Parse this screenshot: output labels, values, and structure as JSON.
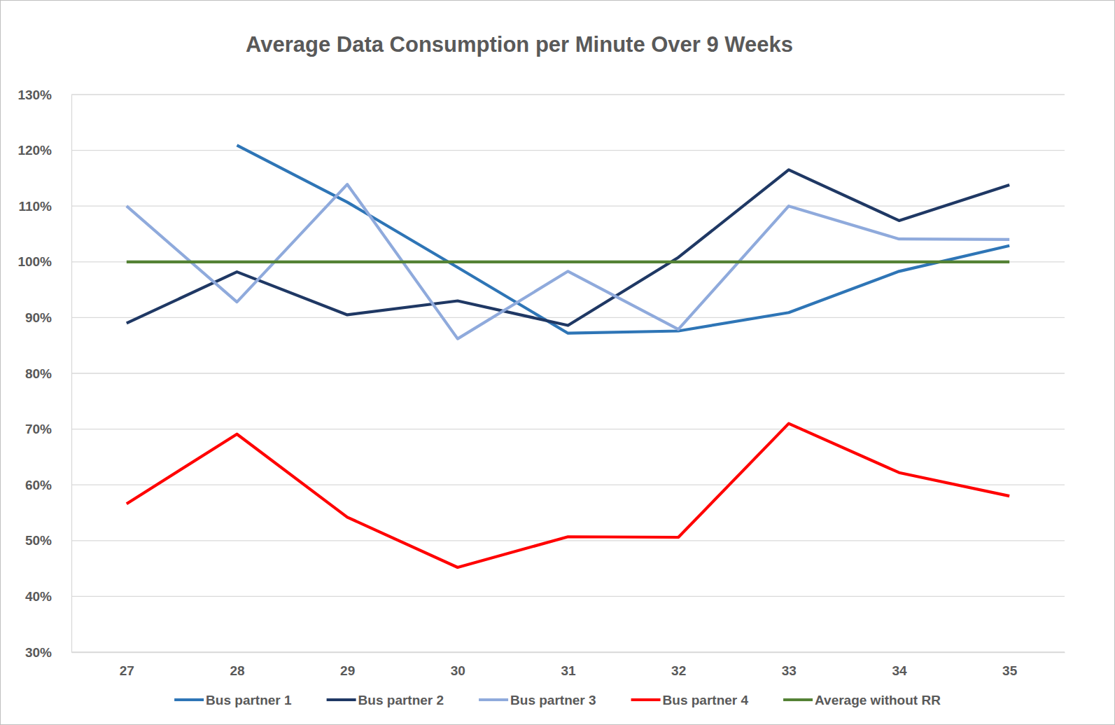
{
  "chart_data": {
    "type": "line",
    "title": "Average Data Consumption per Minute Over 9 Weeks",
    "categories": [
      "27",
      "28",
      "29",
      "30",
      "31",
      "32",
      "33",
      "34",
      "35"
    ],
    "series": [
      {
        "name": "Bus partner 1",
        "color": "#2e75b6",
        "values": [
          null,
          120.9,
          110.7,
          99.0,
          87.2,
          87.6,
          90.9,
          98.3,
          102.9
        ]
      },
      {
        "name": "Bus partner 2",
        "color": "#1f3864",
        "values": [
          89.0,
          98.2,
          90.5,
          93.0,
          88.6,
          100.8,
          116.5,
          107.4,
          113.8
        ]
      },
      {
        "name": "Bus partner 3",
        "color": "#8faadc",
        "values": [
          110.0,
          92.8,
          113.9,
          86.2,
          98.3,
          87.9,
          110.0,
          104.1,
          104.0
        ]
      },
      {
        "name": "Bus partner 4",
        "color": "#ff0000",
        "values": [
          56.6,
          69.1,
          54.2,
          45.2,
          50.7,
          50.6,
          71.0,
          62.2,
          58.0
        ]
      },
      {
        "name": "Average without RR",
        "color": "#548235",
        "values": [
          100,
          100,
          100,
          100,
          100,
          100,
          100,
          100,
          100
        ]
      }
    ],
    "ylim": [
      30,
      130
    ],
    "yticks": [
      {
        "value": 30,
        "label": "30%"
      },
      {
        "value": 40,
        "label": "40%"
      },
      {
        "value": 50,
        "label": "50%"
      },
      {
        "value": 60,
        "label": "60%"
      },
      {
        "value": 70,
        "label": "70%"
      },
      {
        "value": 80,
        "label": "80%"
      },
      {
        "value": 90,
        "label": "90%"
      },
      {
        "value": 100,
        "label": "100%"
      },
      {
        "value": 110,
        "label": "110%"
      },
      {
        "value": 120,
        "label": "120%"
      },
      {
        "value": 130,
        "label": "130%"
      }
    ],
    "grid": true,
    "legend": "bottom"
  }
}
